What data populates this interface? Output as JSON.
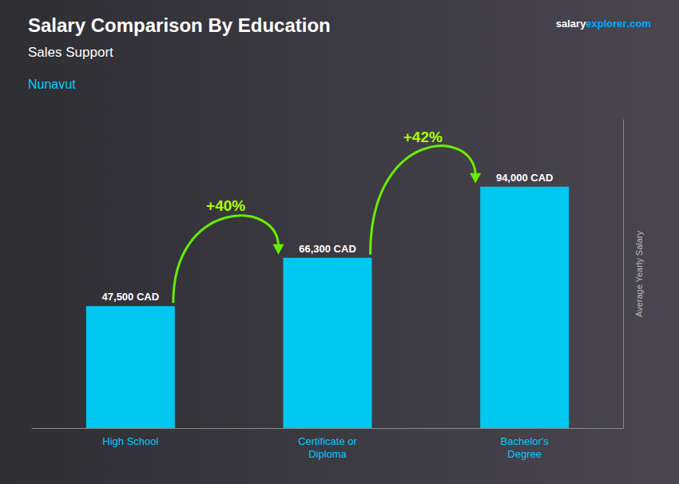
{
  "chart_data": {
    "type": "bar",
    "title": "Salary Comparison By Education",
    "subtitle": "Sales Support",
    "annotations": [
      "Nunavut",
      "salary",
      "explorer",
      ".com",
      "+40%",
      "+42%"
    ],
    "y_label": "Average Yearly Salary",
    "categories": [
      "High School",
      "Certificate or\nDiploma",
      "Bachelor's\nDegree"
    ],
    "values": [
      47500,
      66300,
      94000
    ],
    "value_labels": [
      "47,500 CAD",
      "66,300 CAD",
      "94,000 CAD"
    ],
    "data_labels": true,
    "color": "#00c8f0",
    "ylim": [
      0,
      120000
    ],
    "tick_labels": "x",
    "grid": false
  }
}
